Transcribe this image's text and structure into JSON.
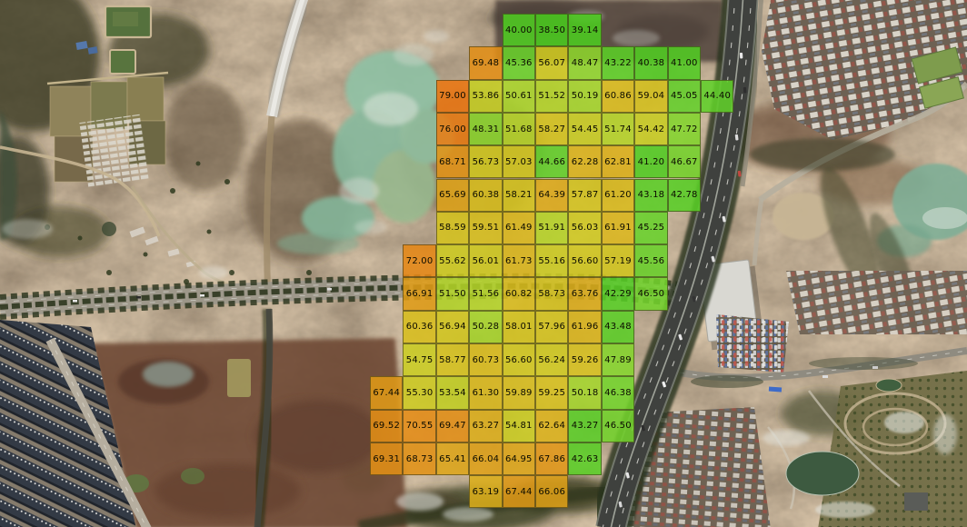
{
  "overlay_grid": {
    "rows": 15,
    "cols": 11,
    "cells": [
      [
        0,
        4,
        40.0
      ],
      [
        0,
        5,
        38.5
      ],
      [
        0,
        6,
        39.14
      ],
      [
        1,
        3,
        69.48
      ],
      [
        1,
        4,
        45.36
      ],
      [
        1,
        5,
        56.07
      ],
      [
        1,
        6,
        48.47
      ],
      [
        1,
        7,
        43.22
      ],
      [
        1,
        8,
        40.38
      ],
      [
        1,
        9,
        41.0
      ],
      [
        2,
        2,
        79.0
      ],
      [
        2,
        3,
        53.86
      ],
      [
        2,
        4,
        50.61
      ],
      [
        2,
        5,
        51.52
      ],
      [
        2,
        6,
        50.19
      ],
      [
        2,
        7,
        60.86
      ],
      [
        2,
        8,
        59.04
      ],
      [
        2,
        9,
        45.05
      ],
      [
        2,
        10,
        44.4
      ],
      [
        3,
        2,
        76.0
      ],
      [
        3,
        3,
        48.31
      ],
      [
        3,
        4,
        51.68
      ],
      [
        3,
        5,
        58.27
      ],
      [
        3,
        6,
        54.45
      ],
      [
        3,
        7,
        51.74
      ],
      [
        3,
        8,
        54.42
      ],
      [
        3,
        9,
        47.72
      ],
      [
        4,
        2,
        68.71
      ],
      [
        4,
        3,
        56.73
      ],
      [
        4,
        4,
        57.03
      ],
      [
        4,
        5,
        44.66
      ],
      [
        4,
        6,
        62.28
      ],
      [
        4,
        7,
        62.81
      ],
      [
        4,
        8,
        41.2
      ],
      [
        4,
        9,
        46.67
      ],
      [
        5,
        2,
        65.69
      ],
      [
        5,
        3,
        60.38
      ],
      [
        5,
        4,
        58.21
      ],
      [
        5,
        5,
        64.39
      ],
      [
        5,
        6,
        57.87
      ],
      [
        5,
        7,
        61.2
      ],
      [
        5,
        8,
        43.18
      ],
      [
        5,
        9,
        42.78
      ],
      [
        6,
        2,
        58.59
      ],
      [
        6,
        3,
        59.51
      ],
      [
        6,
        4,
        61.49
      ],
      [
        6,
        5,
        51.91
      ],
      [
        6,
        6,
        56.03
      ],
      [
        6,
        7,
        61.91
      ],
      [
        6,
        8,
        45.25
      ],
      [
        7,
        1,
        72.0
      ],
      [
        7,
        2,
        55.62
      ],
      [
        7,
        3,
        56.01
      ],
      [
        7,
        4,
        61.73
      ],
      [
        7,
        5,
        55.16
      ],
      [
        7,
        6,
        56.6
      ],
      [
        7,
        7,
        57.19
      ],
      [
        7,
        8,
        45.56
      ],
      [
        8,
        1,
        66.91
      ],
      [
        8,
        2,
        51.5
      ],
      [
        8,
        3,
        51.56
      ],
      [
        8,
        4,
        60.82
      ],
      [
        8,
        5,
        58.73
      ],
      [
        8,
        6,
        63.76
      ],
      [
        8,
        7,
        42.29
      ],
      [
        8,
        8,
        46.5
      ],
      [
        9,
        1,
        60.36
      ],
      [
        9,
        2,
        56.94
      ],
      [
        9,
        3,
        50.28
      ],
      [
        9,
        4,
        58.01
      ],
      [
        9,
        5,
        57.96
      ],
      [
        9,
        6,
        61.96
      ],
      [
        9,
        7,
        43.48
      ],
      [
        10,
        1,
        54.75
      ],
      [
        10,
        2,
        58.77
      ],
      [
        10,
        3,
        60.73
      ],
      [
        10,
        4,
        56.6
      ],
      [
        10,
        5,
        56.24
      ],
      [
        10,
        6,
        59.26
      ],
      [
        10,
        7,
        47.89
      ],
      [
        11,
        0,
        67.44
      ],
      [
        11,
        1,
        55.3
      ],
      [
        11,
        2,
        53.54
      ],
      [
        11,
        3,
        61.3
      ],
      [
        11,
        4,
        59.89
      ],
      [
        11,
        5,
        59.25
      ],
      [
        11,
        6,
        50.18
      ],
      [
        11,
        7,
        46.38
      ],
      [
        12,
        0,
        69.52
      ],
      [
        12,
        1,
        70.55
      ],
      [
        12,
        2,
        69.47
      ],
      [
        12,
        3,
        63.27
      ],
      [
        12,
        4,
        54.81
      ],
      [
        12,
        5,
        62.64
      ],
      [
        12,
        6,
        43.27
      ],
      [
        12,
        7,
        46.5
      ],
      [
        13,
        0,
        69.31
      ],
      [
        13,
        1,
        68.73
      ],
      [
        13,
        2,
        65.41
      ],
      [
        13,
        3,
        66.04
      ],
      [
        13,
        4,
        64.95
      ],
      [
        13,
        5,
        67.86
      ],
      [
        13,
        6,
        42.63
      ],
      [
        14,
        3,
        63.19
      ],
      [
        14,
        4,
        67.44
      ],
      [
        14,
        5,
        66.06
      ]
    ],
    "color_scale": {
      "stops": [
        [
          38,
          "#48CB1D"
        ],
        [
          42,
          "#55CE24"
        ],
        [
          45,
          "#64D02A"
        ],
        [
          47,
          "#78D42C"
        ],
        [
          49,
          "#94D52C"
        ],
        [
          51,
          "#AED428"
        ],
        [
          53,
          "#BFD124"
        ],
        [
          55,
          "#CBCB20"
        ],
        [
          57,
          "#D2C71E"
        ],
        [
          59,
          "#D6C11D"
        ],
        [
          61,
          "#D9BB1C"
        ],
        [
          63,
          "#DCB01A"
        ],
        [
          65,
          "#DEA719"
        ],
        [
          67,
          "#E09C17"
        ],
        [
          69,
          "#E29116"
        ],
        [
          71,
          "#E48915"
        ],
        [
          74,
          "#E78114"
        ],
        [
          77,
          "#EA7A12"
        ],
        [
          80,
          "#EC7411"
        ]
      ],
      "cell_opacity": 0.87,
      "grid_line_color": "rgba(62,58,24,0.62)",
      "label_color": "#0b0b00"
    }
  }
}
